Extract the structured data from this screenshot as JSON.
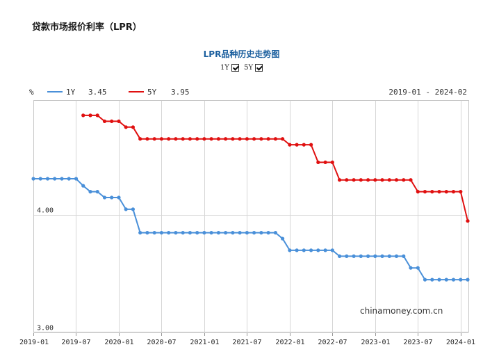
{
  "page_title": "贷款市场报价利率（LPR）",
  "chart_title": "LPR品种历史走势图",
  "toggles": [
    {
      "label": "1Y",
      "checked": true
    },
    {
      "label": "5Y",
      "checked": true
    }
  ],
  "watermark": "chinamoney.com.cn",
  "chart_data": {
    "type": "line",
    "title": "LPR品种历史走势图",
    "ylabel": "%",
    "date_range": "2019-01 - 2024-02",
    "ylim": [
      3.0,
      4.98
    ],
    "grid": true,
    "y_ticks": [
      {
        "value": 3.0,
        "label": "3.00"
      },
      {
        "value": 4.0,
        "label": "4.00"
      }
    ],
    "x_ticks": [
      "2019-01",
      "2019-07",
      "2020-01",
      "2020-07",
      "2021-01",
      "2021-07",
      "2022-01",
      "2022-07",
      "2023-01",
      "2023-07",
      "2024-01"
    ],
    "x": [
      "2019-01",
      "2019-02",
      "2019-03",
      "2019-04",
      "2019-05",
      "2019-06",
      "2019-07",
      "2019-08",
      "2019-09",
      "2019-10",
      "2019-11",
      "2019-12",
      "2020-01",
      "2020-02",
      "2020-03",
      "2020-04",
      "2020-05",
      "2020-06",
      "2020-07",
      "2020-08",
      "2020-09",
      "2020-10",
      "2020-11",
      "2020-12",
      "2021-01",
      "2021-02",
      "2021-03",
      "2021-04",
      "2021-05",
      "2021-06",
      "2021-07",
      "2021-08",
      "2021-09",
      "2021-10",
      "2021-11",
      "2021-12",
      "2022-01",
      "2022-02",
      "2022-03",
      "2022-04",
      "2022-05",
      "2022-06",
      "2022-07",
      "2022-08",
      "2022-09",
      "2022-10",
      "2022-11",
      "2022-12",
      "2023-01",
      "2023-02",
      "2023-03",
      "2023-04",
      "2023-05",
      "2023-06",
      "2023-07",
      "2023-08",
      "2023-09",
      "2023-10",
      "2023-11",
      "2023-12",
      "2024-01",
      "2024-02"
    ],
    "series": [
      {
        "name": "1Y",
        "latest": "3.45",
        "color": "#4a90d9",
        "values": [
          4.31,
          4.31,
          4.31,
          4.31,
          4.31,
          4.31,
          4.31,
          4.25,
          4.2,
          4.2,
          4.15,
          4.15,
          4.15,
          4.05,
          4.05,
          3.85,
          3.85,
          3.85,
          3.85,
          3.85,
          3.85,
          3.85,
          3.85,
          3.85,
          3.85,
          3.85,
          3.85,
          3.85,
          3.85,
          3.85,
          3.85,
          3.85,
          3.85,
          3.85,
          3.85,
          3.8,
          3.7,
          3.7,
          3.7,
          3.7,
          3.7,
          3.7,
          3.7,
          3.65,
          3.65,
          3.65,
          3.65,
          3.65,
          3.65,
          3.65,
          3.65,
          3.65,
          3.65,
          3.55,
          3.55,
          3.45,
          3.45,
          3.45,
          3.45,
          3.45,
          3.45,
          3.45
        ]
      },
      {
        "name": "5Y",
        "latest": "3.95",
        "color": "#e01010",
        "values": [
          null,
          null,
          null,
          null,
          null,
          null,
          null,
          4.85,
          4.85,
          4.85,
          4.8,
          4.8,
          4.8,
          4.75,
          4.75,
          4.65,
          4.65,
          4.65,
          4.65,
          4.65,
          4.65,
          4.65,
          4.65,
          4.65,
          4.65,
          4.65,
          4.65,
          4.65,
          4.65,
          4.65,
          4.65,
          4.65,
          4.65,
          4.65,
          4.65,
          4.65,
          4.6,
          4.6,
          4.6,
          4.6,
          4.45,
          4.45,
          4.45,
          4.3,
          4.3,
          4.3,
          4.3,
          4.3,
          4.3,
          4.3,
          4.3,
          4.3,
          4.3,
          4.3,
          4.2,
          4.2,
          4.2,
          4.2,
          4.2,
          4.2,
          4.2,
          3.95
        ]
      }
    ]
  }
}
